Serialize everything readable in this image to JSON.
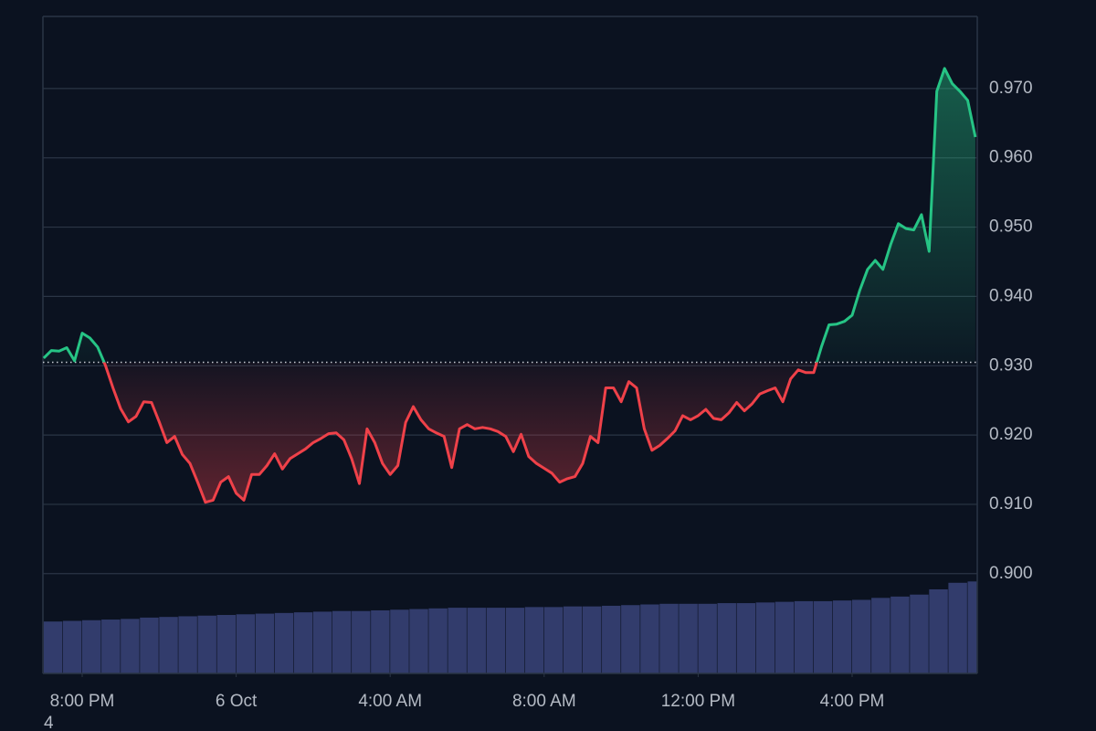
{
  "chart_data": {
    "type": "line",
    "x": [
      19,
      19.2,
      19.4,
      19.6,
      19.8,
      20,
      20.2,
      20.4,
      20.6,
      20.8,
      21,
      21.2,
      21.4,
      21.6,
      21.8,
      22,
      22.2,
      22.4,
      22.6,
      22.8,
      23,
      23.2,
      23.4,
      23.6,
      23.8,
      24,
      24.2,
      24.4,
      24.6,
      24.8,
      25,
      25.2,
      25.4,
      25.6,
      25.8,
      26,
      26.2,
      26.4,
      26.6,
      26.8,
      27,
      27.2,
      27.4,
      27.6,
      27.8,
      28,
      28.2,
      28.4,
      28.6,
      28.8,
      29,
      29.2,
      29.4,
      29.6,
      29.8,
      30,
      30.2,
      30.4,
      30.6,
      30.8,
      31,
      31.2,
      31.4,
      31.6,
      31.8,
      32,
      32.2,
      32.4,
      32.6,
      32.8,
      33,
      33.2,
      33.4,
      33.6,
      33.8,
      34,
      34.2,
      34.4,
      34.6,
      34.8,
      35,
      35.2,
      35.4,
      35.6,
      35.8,
      36,
      36.2,
      36.4,
      36.6,
      36.8,
      37,
      37.2,
      37.4,
      37.6,
      37.8,
      38,
      38.2,
      38.4,
      38.6,
      38.8,
      39,
      39.2,
      39.4,
      39.6,
      39.8,
      40,
      40.2,
      40.4,
      40.6,
      40.8,
      41,
      41.2,
      41.4,
      41.6,
      41.8,
      42,
      42.2,
      42.4,
      42.6,
      42.8,
      43,
      43.2
    ],
    "values": [
      0.9311,
      0.9322,
      0.9321,
      0.9326,
      0.9307,
      0.9347,
      0.934,
      0.9327,
      0.9301,
      0.9268,
      0.9238,
      0.9219,
      0.9227,
      0.9248,
      0.9247,
      0.9219,
      0.9189,
      0.9198,
      0.9172,
      0.9159,
      0.9132,
      0.9103,
      0.9106,
      0.9132,
      0.914,
      0.9116,
      0.9106,
      0.9143,
      0.9143,
      0.9156,
      0.9173,
      0.9151,
      0.9166,
      0.9173,
      0.918,
      0.9189,
      0.9195,
      0.9202,
      0.9203,
      0.9193,
      0.9166,
      0.913,
      0.9209,
      0.9189,
      0.9159,
      0.9143,
      0.9156,
      0.9218,
      0.9241,
      0.9222,
      0.9209,
      0.9203,
      0.9198,
      0.9153,
      0.9209,
      0.9215,
      0.9209,
      0.9211,
      0.9209,
      0.9205,
      0.9198,
      0.9176,
      0.9201,
      0.9169,
      0.9159,
      0.9152,
      0.9145,
      0.9132,
      0.9137,
      0.914,
      0.9159,
      0.9198,
      0.9189,
      0.9268,
      0.9268,
      0.9248,
      0.9277,
      0.9268,
      0.9209,
      0.9178,
      0.9185,
      0.9195,
      0.9206,
      0.9228,
      0.9222,
      0.9228,
      0.9237,
      0.9224,
      0.9222,
      0.9232,
      0.9247,
      0.9235,
      0.9245,
      0.9259,
      0.9264,
      0.9268,
      0.9248,
      0.9281,
      0.9294,
      0.929,
      0.929,
      0.9327,
      0.9359,
      0.936,
      0.9364,
      0.9373,
      0.9409,
      0.9439,
      0.9452,
      0.9439,
      0.9475,
      0.9505,
      0.9498,
      0.9496,
      0.9518,
      0.9465,
      0.9696,
      0.9729,
      0.9707,
      0.9696,
      0.9683,
      0.963
    ],
    "up_color": "#26c485",
    "down_color": "#ef4149",
    "baseline": 0.9305,
    "xlim": [
      18.98,
      43.25
    ],
    "xticks": [
      {
        "value": 20,
        "label": "8:00 PM"
      },
      {
        "value": 24,
        "label": "6 Oct"
      },
      {
        "value": 28,
        "label": "4:00 AM"
      },
      {
        "value": 32,
        "label": "8:00 AM"
      },
      {
        "value": 36,
        "label": "12:00 PM"
      },
      {
        "value": 40,
        "label": "4:00 PM"
      }
    ],
    "ylim": [
      0.8856,
      0.9804
    ],
    "yticks": [
      {
        "value": 0.9,
        "label": "0.900"
      },
      {
        "value": 0.91,
        "label": "0.910"
      },
      {
        "value": 0.92,
        "label": "0.920"
      },
      {
        "value": 0.93,
        "label": "0.930"
      },
      {
        "value": 0.94,
        "label": "0.940"
      },
      {
        "value": 0.95,
        "label": "0.950"
      },
      {
        "value": 0.96,
        "label": "0.960"
      },
      {
        "value": 0.97,
        "label": "0.970"
      }
    ],
    "grid": true,
    "volume": {
      "x": [
        19,
        19.5,
        20,
        20.5,
        21,
        21.5,
        22,
        22.5,
        23,
        23.5,
        24,
        24.5,
        25,
        25.5,
        26,
        26.5,
        27,
        27.5,
        28,
        28.5,
        29,
        29.5,
        30,
        30.5,
        31,
        31.5,
        32,
        32.5,
        33,
        33.5,
        34,
        34.5,
        35,
        35.5,
        36,
        36.5,
        37,
        37.5,
        38,
        38.5,
        39,
        39.5,
        40,
        40.5,
        41,
        41.5,
        42,
        42.5,
        43
      ],
      "values": [
        79,
        80,
        81,
        82,
        83,
        85,
        86,
        87,
        88,
        89,
        90,
        91,
        92,
        93,
        94,
        95,
        95,
        96,
        97,
        98,
        99,
        100,
        100,
        100,
        100,
        101,
        101,
        102,
        102,
        103,
        104,
        105,
        106,
        106,
        106,
        107,
        107,
        108,
        109,
        110,
        110,
        111,
        112,
        115,
        117,
        120,
        128,
        138,
        140
      ],
      "ylim": [
        0,
        1000
      ],
      "color": "#323c6c"
    },
    "stray_text": "4"
  }
}
